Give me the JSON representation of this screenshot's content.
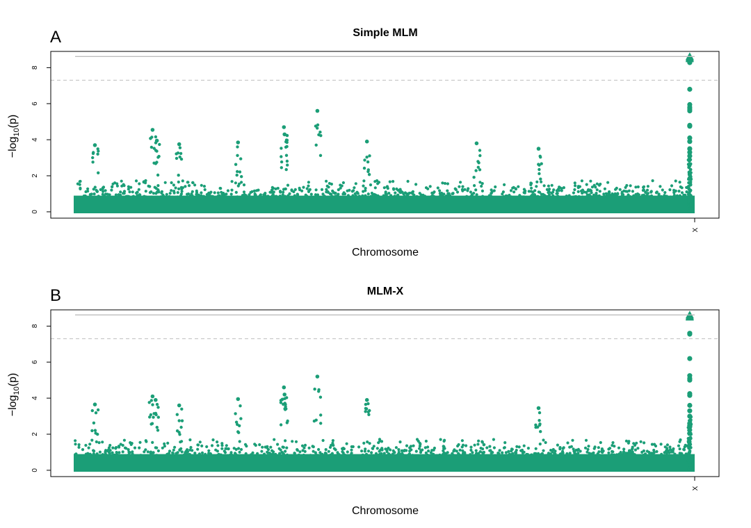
{
  "colors": {
    "points": "#1b9e77",
    "threshold_solid": "#bdbdbd",
    "threshold_dashed": "#c8c8c8",
    "frame": "#000000"
  },
  "chart_data": [
    {
      "type": "scatter",
      "panel_letter": "A",
      "title": "Simple MLM",
      "xlabel": "Chromosome",
      "ylabel_prefix": "−log",
      "ylabel_sub": "10",
      "ylabel_suffix": "(p)",
      "ylim": [
        -0.35,
        8.9
      ],
      "yticks": [
        "0",
        "2",
        "4",
        "6",
        "8"
      ],
      "xtick_label": "X",
      "threshold_solid": 8.62,
      "threshold_dashed": 7.3,
      "grid": false,
      "genome_positions": 100,
      "x_chromosome_position": 99.2,
      "notable_points": [
        {
          "x": 3.2,
          "y": 3.7
        },
        {
          "x": 12.5,
          "y": 4.55
        },
        {
          "x": 13.2,
          "y": 3.95
        },
        {
          "x": 16.8,
          "y": 3.75
        },
        {
          "x": 26.3,
          "y": 3.85
        },
        {
          "x": 33.7,
          "y": 4.7
        },
        {
          "x": 33.8,
          "y": 4.3
        },
        {
          "x": 39.1,
          "y": 5.6
        },
        {
          "x": 47.1,
          "y": 3.9
        },
        {
          "x": 64.8,
          "y": 3.8
        },
        {
          "x": 74.8,
          "y": 3.5
        }
      ],
      "x_chromosome_points": [
        8.62,
        8.55,
        8.5,
        8.3,
        8.28,
        6.8,
        5.95,
        5.8,
        5.7,
        5.6,
        4.8,
        4.75,
        4.1,
        3.9,
        3.5,
        3.3,
        3.1
      ]
    },
    {
      "type": "scatter",
      "panel_letter": "B",
      "title": "MLM-X",
      "xlabel": "Chromosome",
      "ylabel_prefix": "−log",
      "ylabel_sub": "10",
      "ylabel_suffix": "(p)",
      "ylim": [
        -0.35,
        8.9
      ],
      "yticks": [
        "0",
        "2",
        "4",
        "6",
        "8"
      ],
      "xtick_label": "X",
      "threshold_solid": 8.62,
      "threshold_dashed": 7.3,
      "grid": false,
      "genome_positions": 100,
      "x_chromosome_position": 99.2,
      "notable_points": [
        {
          "x": 3.2,
          "y": 3.65
        },
        {
          "x": 12.5,
          "y": 4.1
        },
        {
          "x": 13.0,
          "y": 3.9
        },
        {
          "x": 16.8,
          "y": 3.6
        },
        {
          "x": 26.3,
          "y": 3.95
        },
        {
          "x": 33.7,
          "y": 4.6
        },
        {
          "x": 33.8,
          "y": 4.2
        },
        {
          "x": 39.1,
          "y": 5.2
        },
        {
          "x": 47.1,
          "y": 3.9
        },
        {
          "x": 74.8,
          "y": 3.45
        }
      ],
      "x_chromosome_points": [
        8.62,
        8.55,
        8.5,
        7.6,
        7.55,
        6.2,
        5.25,
        5.1,
        5.0,
        4.25,
        4.15,
        3.6,
        3.3,
        3.0
      ]
    }
  ]
}
